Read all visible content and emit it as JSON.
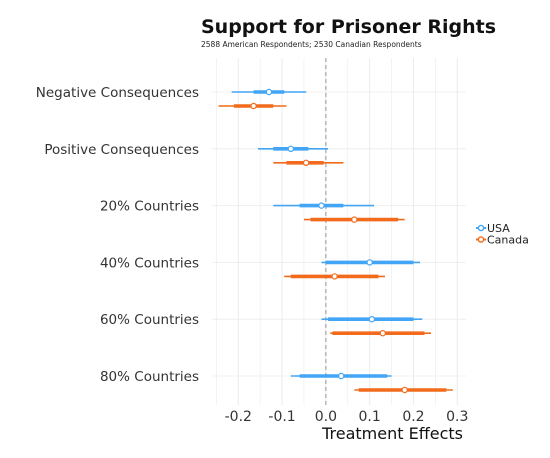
{
  "chart_data": {
    "type": "scatter",
    "title": "Support for Prisoner Rights",
    "subtitle": "2588 American Respondents; 2530 Canadian Respondents",
    "xlabel": "Treatment Effects",
    "ylabel": "",
    "xlim": [
      -0.26,
      0.32
    ],
    "xticks": [
      -0.2,
      -0.1,
      0.0,
      0.1,
      0.2,
      0.3
    ],
    "xtick_labels": [
      "-0.2",
      "-0.1",
      "0.0",
      "0.1",
      "0.2",
      "0.3"
    ],
    "zero_line": 0.0,
    "grid": true,
    "legend_position": "right",
    "categories": [
      "Negative Consequences",
      "Positive Consequences",
      "20% Countries",
      "40% Countries",
      "60% Countries",
      "80% Countries"
    ],
    "series": [
      {
        "name": "USA",
        "color": "#42a5f5",
        "estimate": [
          -0.13,
          -0.08,
          -0.01,
          0.1,
          0.105,
          0.035
        ],
        "ci_inner": [
          [
            -0.165,
            -0.095
          ],
          [
            -0.12,
            -0.04
          ],
          [
            -0.06,
            0.04
          ],
          [
            0.0,
            0.2
          ],
          [
            0.005,
            0.2
          ],
          [
            -0.06,
            0.14
          ]
        ],
        "ci_outer": [
          [
            -0.215,
            -0.045
          ],
          [
            -0.155,
            0.005
          ],
          [
            -0.12,
            0.11
          ],
          [
            -0.01,
            0.215
          ],
          [
            -0.01,
            0.22
          ],
          [
            -0.08,
            0.15
          ]
        ]
      },
      {
        "name": "Canada",
        "color": "#f26b1d",
        "estimate": [
          -0.165,
          -0.045,
          0.065,
          0.02,
          0.13,
          0.18
        ],
        "ci_inner": [
          [
            -0.21,
            -0.12
          ],
          [
            -0.09,
            -0.005
          ],
          [
            -0.035,
            0.165
          ],
          [
            -0.08,
            0.12
          ],
          [
            0.015,
            0.225
          ],
          [
            0.075,
            0.275
          ]
        ],
        "ci_outer": [
          [
            -0.245,
            -0.09
          ],
          [
            -0.12,
            0.04
          ],
          [
            -0.05,
            0.18
          ],
          [
            -0.095,
            0.135
          ],
          [
            0.01,
            0.24
          ],
          [
            0.065,
            0.29
          ]
        ]
      }
    ]
  },
  "palette": {
    "grid": "#ebebeb",
    "zero_line": "#9e9e9e",
    "point_fill": "#ffffff"
  }
}
